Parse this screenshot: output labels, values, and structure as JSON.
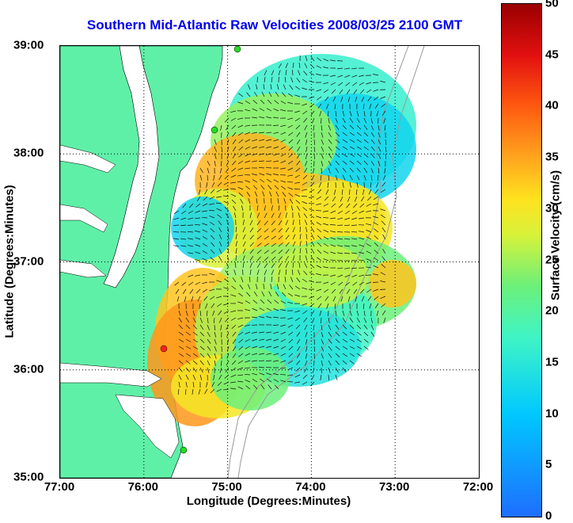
{
  "title": "Southern Mid-Atlantic Raw Velocities 2008/03/25 2100 GMT",
  "xlabel": "Longitude (Degrees:Minutes)",
  "ylabel": "Latitude (Degrees:Minutes)",
  "x_ticks": [
    "77:00",
    "76:00",
    "75:00",
    "74:00",
    "73:00",
    "72:00"
  ],
  "y_ticks": [
    "39:00",
    "38:00",
    "37:00",
    "36:00",
    "35:00"
  ],
  "colorbar": {
    "label": "Surface Velocity (cm/s)",
    "ticks": [
      "50",
      "45",
      "40",
      "35",
      "30",
      "25",
      "20",
      "15",
      "10",
      "5",
      "0"
    ],
    "range": [
      0,
      50
    ]
  },
  "colors": {
    "land": "#5ff0a8",
    "title": "#0000ee",
    "vector": "#111111",
    "station": "#22dd22",
    "station_highlight": "#ff2020"
  }
}
